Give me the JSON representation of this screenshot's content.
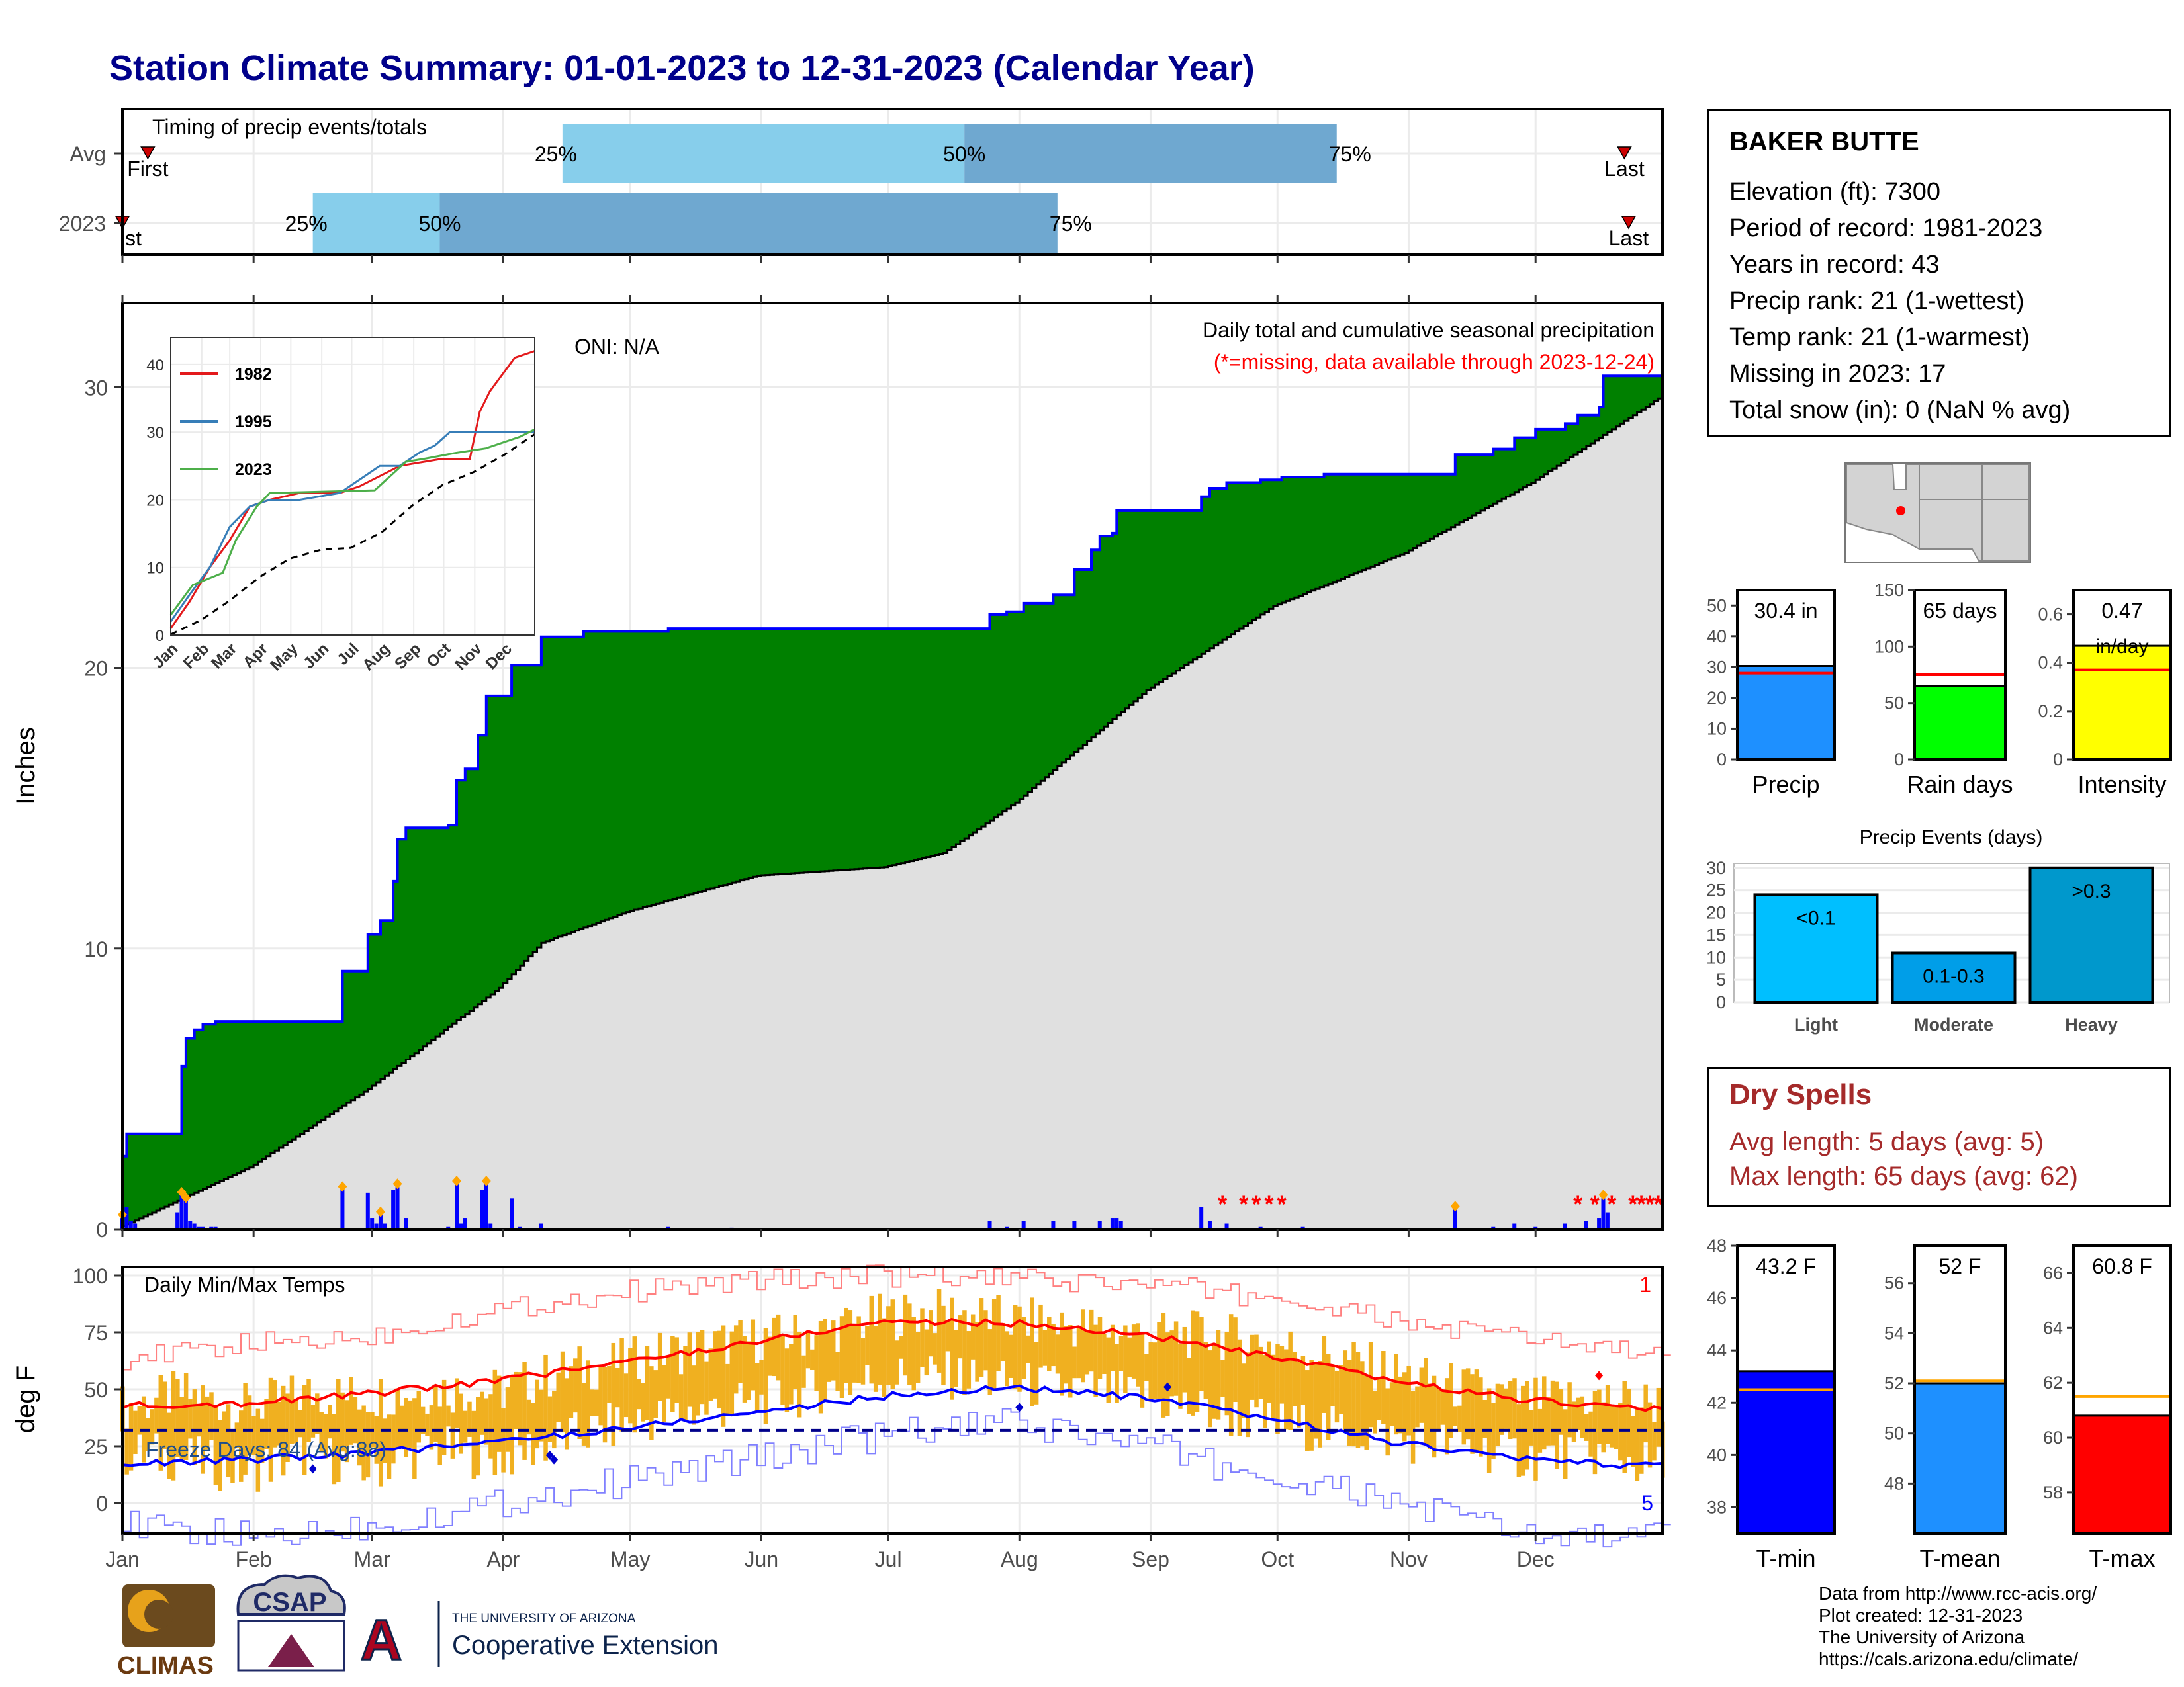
{
  "title": "Station Climate Summary: 01-01-2023 to 12-31-2023 (Calendar Year)",
  "months": [
    "Jan",
    "Feb",
    "Mar",
    "Apr",
    "May",
    "Jun",
    "Jul",
    "Aug",
    "Sep",
    "Oct",
    "Nov",
    "Dec"
  ],
  "timing": {
    "title": "Timing of precip events/totals",
    "rows": [
      {
        "label": "Avg",
        "first_doy": 7,
        "q25_doy": 105,
        "q50_doy": 200,
        "q75_doy": 288,
        "last_doy": 356
      },
      {
        "label": "2023",
        "first_doy": 1,
        "q25_doy": 46,
        "q50_doy": 76,
        "q75_doy": 222,
        "last_doy": 357
      }
    ],
    "first_label": "First",
    "first_label_2023": "st",
    "last_label": "Last",
    "pct25": "25%",
    "pct50": "50%",
    "pct75": "75%"
  },
  "precip": {
    "ylabel": "Inches",
    "yticks": [
      0,
      10,
      20,
      30
    ],
    "ylim": [
      0,
      33
    ],
    "oni": "ONI: N/A",
    "subtitle": "Daily total and cumulative seasonal precipitation",
    "missing_note": "(*=missing, data available through 2023-12-24)",
    "cum_2023": [
      [
        1,
        2.6
      ],
      [
        2,
        3.4
      ],
      [
        14,
        3.4
      ],
      [
        15,
        5.8
      ],
      [
        16,
        6.8
      ],
      [
        18,
        7.1
      ],
      [
        20,
        7.3
      ],
      [
        23,
        7.4
      ],
      [
        52,
        7.4
      ],
      [
        53,
        9.2
      ],
      [
        58,
        9.2
      ],
      [
        59,
        10.5
      ],
      [
        62,
        11.0
      ],
      [
        65,
        12.4
      ],
      [
        66,
        13.9
      ],
      [
        68,
        14.3
      ],
      [
        72,
        14.3
      ],
      [
        78,
        14.4
      ],
      [
        80,
        16.0
      ],
      [
        82,
        16.4
      ],
      [
        84,
        16.4
      ],
      [
        85,
        17.6
      ],
      [
        87,
        19.0
      ],
      [
        92,
        19.0
      ],
      [
        93,
        20.1
      ],
      [
        100,
        21.1
      ],
      [
        110,
        21.3
      ],
      [
        130,
        21.4
      ],
      [
        170,
        21.4
      ],
      [
        205,
        21.4
      ],
      [
        206,
        21.9
      ],
      [
        210,
        22.0
      ],
      [
        214,
        22.3
      ],
      [
        220,
        22.3
      ],
      [
        221,
        22.6
      ],
      [
        226,
        23.5
      ],
      [
        230,
        24.2
      ],
      [
        232,
        24.7
      ],
      [
        235,
        24.8
      ],
      [
        236,
        25.6
      ],
      [
        255,
        25.6
      ],
      [
        256,
        26.1
      ],
      [
        258,
        26.4
      ],
      [
        262,
        26.6
      ],
      [
        270,
        26.7
      ],
      [
        275,
        26.8
      ],
      [
        285,
        26.9
      ],
      [
        315,
        26.9
      ],
      [
        316,
        27.6
      ],
      [
        325,
        27.8
      ],
      [
        330,
        28.2
      ],
      [
        335,
        28.5
      ],
      [
        342,
        28.7
      ],
      [
        345,
        29.0
      ],
      [
        350,
        29.3
      ],
      [
        351,
        30.4
      ],
      [
        358,
        30.4
      ],
      [
        365,
        30.4
      ]
    ],
    "cum_avg": [
      [
        1,
        0.1
      ],
      [
        31,
        2.2
      ],
      [
        59,
        5.0
      ],
      [
        90,
        8.6
      ],
      [
        100,
        10.2
      ],
      [
        120,
        11.3
      ],
      [
        151,
        12.6
      ],
      [
        181,
        12.9
      ],
      [
        195,
        13.4
      ],
      [
        212,
        15.2
      ],
      [
        243,
        19.2
      ],
      [
        273,
        22.2
      ],
      [
        304,
        24.1
      ],
      [
        334,
        26.6
      ],
      [
        365,
        29.7
      ]
    ],
    "daily_2023": [
      [
        1,
        0.4
      ],
      [
        2,
        0.8
      ],
      [
        3,
        0.3
      ],
      [
        4,
        0.2
      ],
      [
        14,
        0.6
      ],
      [
        15,
        1.2
      ],
      [
        16,
        1.0
      ],
      [
        17,
        0.3
      ],
      [
        18,
        0.2
      ],
      [
        19,
        0.1
      ],
      [
        20,
        0.1
      ],
      [
        22,
        0.1
      ],
      [
        23,
        0.1
      ],
      [
        53,
        1.4
      ],
      [
        59,
        1.3
      ],
      [
        60,
        0.4
      ],
      [
        61,
        0.2
      ],
      [
        62,
        0.5
      ],
      [
        63,
        0.2
      ],
      [
        65,
        1.4
      ],
      [
        66,
        1.5
      ],
      [
        68,
        0.4
      ],
      [
        78,
        0.1
      ],
      [
        80,
        1.6
      ],
      [
        81,
        0.2
      ],
      [
        82,
        0.4
      ],
      [
        86,
        1.4
      ],
      [
        87,
        1.6
      ],
      [
        88,
        0.2
      ],
      [
        93,
        1.1
      ],
      [
        95,
        0.1
      ],
      [
        100,
        0.2
      ],
      [
        130,
        0.1
      ],
      [
        145,
        0.05
      ],
      [
        206,
        0.3
      ],
      [
        210,
        0.1
      ],
      [
        214,
        0.3
      ],
      [
        221,
        0.3
      ],
      [
        226,
        0.3
      ],
      [
        232,
        0.3
      ],
      [
        235,
        0.4
      ],
      [
        236,
        0.4
      ],
      [
        237,
        0.3
      ],
      [
        256,
        0.8
      ],
      [
        258,
        0.3
      ],
      [
        262,
        0.2
      ],
      [
        270,
        0.1
      ],
      [
        280,
        0.1
      ],
      [
        316,
        0.7
      ],
      [
        325,
        0.1
      ],
      [
        330,
        0.2
      ],
      [
        335,
        0.1
      ],
      [
        342,
        0.2
      ],
      [
        347,
        0.3
      ],
      [
        350,
        0.4
      ],
      [
        351,
        1.1
      ],
      [
        352,
        0.6
      ]
    ],
    "markers_doy": [
      1,
      15,
      16,
      53,
      62,
      66,
      80,
      87,
      316,
      351
    ],
    "missing_doy": [
      261,
      266,
      269,
      272,
      275,
      345,
      349,
      353,
      358,
      360,
      362,
      364
    ]
  },
  "inset": {
    "yticks": [
      0,
      10,
      20,
      30,
      40
    ],
    "series": [
      {
        "name": "1982",
        "color": "#e31a1c",
        "points": [
          [
            1,
            1
          ],
          [
            20,
            5
          ],
          [
            40,
            10
          ],
          [
            60,
            14
          ],
          [
            80,
            19
          ],
          [
            100,
            20
          ],
          [
            130,
            21
          ],
          [
            170,
            21
          ],
          [
            190,
            22
          ],
          [
            230,
            25
          ],
          [
            270,
            26
          ],
          [
            300,
            26
          ],
          [
            310,
            33
          ],
          [
            320,
            36
          ],
          [
            330,
            38
          ],
          [
            345,
            41
          ],
          [
            365,
            42
          ]
        ]
      },
      {
        "name": "1995",
        "color": "#377eb8",
        "points": [
          [
            1,
            2
          ],
          [
            20,
            6
          ],
          [
            40,
            10
          ],
          [
            60,
            16
          ],
          [
            80,
            19
          ],
          [
            100,
            20
          ],
          [
            130,
            20
          ],
          [
            170,
            21
          ],
          [
            190,
            23
          ],
          [
            210,
            25
          ],
          [
            230,
            25
          ],
          [
            250,
            27
          ],
          [
            265,
            28
          ],
          [
            280,
            30
          ],
          [
            310,
            30
          ],
          [
            345,
            30
          ],
          [
            365,
            30
          ]
        ]
      },
      {
        "name": "2023",
        "color": "#4daf4a",
        "points": [
          [
            1,
            3
          ],
          [
            23,
            7.4
          ],
          [
            53,
            9.2
          ],
          [
            66,
            14
          ],
          [
            87,
            19
          ],
          [
            100,
            21
          ],
          [
            205,
            21.4
          ],
          [
            236,
            25.6
          ],
          [
            256,
            26.1
          ],
          [
            285,
            26.9
          ],
          [
            316,
            27.6
          ],
          [
            350,
            29.3
          ],
          [
            365,
            30.4
          ]
        ]
      }
    ],
    "avg_points": [
      [
        1,
        0.1
      ],
      [
        31,
        2.2
      ],
      [
        59,
        5.0
      ],
      [
        90,
        8.6
      ],
      [
        120,
        11.3
      ],
      [
        151,
        12.6
      ],
      [
        181,
        12.9
      ],
      [
        212,
        15.2
      ],
      [
        243,
        19.2
      ],
      [
        273,
        22.2
      ],
      [
        304,
        24.1
      ],
      [
        334,
        26.6
      ],
      [
        365,
        29.7
      ]
    ]
  },
  "temps": {
    "ylabel": "deg F",
    "title": "Daily Min/Max Temps",
    "yticks": [
      0,
      25,
      50,
      75,
      100
    ],
    "freeze_label": "Freeze Days: 84 (Avg:88)",
    "freeze_line": 32,
    "record_hi_count": "1",
    "record_lo_count": "5",
    "avg_max": [
      [
        1,
        43
      ],
      [
        31,
        44
      ],
      [
        59,
        48
      ],
      [
        90,
        54
      ],
      [
        120,
        62
      ],
      [
        151,
        71
      ],
      [
        181,
        80
      ],
      [
        212,
        79
      ],
      [
        243,
        74
      ],
      [
        273,
        64
      ],
      [
        304,
        53
      ],
      [
        334,
        45
      ],
      [
        365,
        41
      ]
    ],
    "avg_min": [
      [
        1,
        17
      ],
      [
        31,
        19
      ],
      [
        59,
        22
      ],
      [
        90,
        27
      ],
      [
        120,
        33
      ],
      [
        151,
        40
      ],
      [
        181,
        47
      ],
      [
        212,
        51
      ],
      [
        243,
        46
      ],
      [
        273,
        37
      ],
      [
        304,
        26
      ],
      [
        334,
        19
      ],
      [
        365,
        16
      ]
    ],
    "hi_2023": [
      [
        1,
        42
      ],
      [
        15,
        48
      ],
      [
        30,
        42
      ],
      [
        45,
        48
      ],
      [
        59,
        47
      ],
      [
        75,
        50
      ],
      [
        90,
        49
      ],
      [
        105,
        58
      ],
      [
        120,
        62
      ],
      [
        135,
        68
      ],
      [
        151,
        72
      ],
      [
        166,
        75
      ],
      [
        181,
        82
      ],
      [
        196,
        84
      ],
      [
        212,
        80
      ],
      [
        227,
        78
      ],
      [
        243,
        74
      ],
      [
        258,
        74
      ],
      [
        273,
        70
      ],
      [
        288,
        64
      ],
      [
        304,
        56
      ],
      [
        319,
        50
      ],
      [
        334,
        45
      ],
      [
        349,
        46
      ],
      [
        365,
        44
      ]
    ],
    "lo_2023": [
      [
        1,
        22
      ],
      [
        15,
        20
      ],
      [
        30,
        14
      ],
      [
        45,
        22
      ],
      [
        59,
        15
      ],
      [
        75,
        24
      ],
      [
        90,
        20
      ],
      [
        105,
        28
      ],
      [
        120,
        35
      ],
      [
        135,
        40
      ],
      [
        151,
        44
      ],
      [
        166,
        50
      ],
      [
        181,
        55
      ],
      [
        196,
        56
      ],
      [
        212,
        52
      ],
      [
        227,
        50
      ],
      [
        243,
        46
      ],
      [
        258,
        40
      ],
      [
        273,
        35
      ],
      [
        288,
        32
      ],
      [
        304,
        28
      ],
      [
        319,
        25
      ],
      [
        334,
        20
      ],
      [
        349,
        22
      ],
      [
        365,
        15
      ]
    ],
    "rec_max": [
      [
        1,
        63
      ],
      [
        31,
        70
      ],
      [
        59,
        73
      ],
      [
        90,
        85
      ],
      [
        120,
        93
      ],
      [
        151,
        98
      ],
      [
        181,
        100
      ],
      [
        212,
        98
      ],
      [
        243,
        96
      ],
      [
        273,
        90
      ],
      [
        304,
        79
      ],
      [
        334,
        72
      ],
      [
        365,
        65
      ]
    ],
    "rec_min": [
      [
        1,
        -10
      ],
      [
        31,
        -15
      ],
      [
        59,
        -10
      ],
      [
        90,
        0
      ],
      [
        120,
        10
      ],
      [
        151,
        20
      ],
      [
        181,
        30
      ],
      [
        212,
        35
      ],
      [
        243,
        25
      ],
      [
        273,
        10
      ],
      [
        304,
        0
      ],
      [
        334,
        -15
      ],
      [
        365,
        -15
      ]
    ]
  },
  "station": {
    "name": "BAKER BUTTE",
    "lines": [
      "Elevation (ft): 7300",
      "Period of record: 1981-2023",
      "Years in record: 43",
      "Precip rank: 21 (1-wettest)",
      "Temp rank: 21 (1-warmest)",
      "Missing in 2023: 17",
      "Total snow (in): 0 (NaN % avg)"
    ]
  },
  "gauges": [
    {
      "label": "Precip",
      "value_label": "30.4 in",
      "value": 30.4,
      "avg": 28,
      "ylim": [
        0,
        55
      ],
      "yticks": [
        0,
        10,
        20,
        30,
        40,
        50
      ],
      "color": "#1e90ff"
    },
    {
      "label": "Rain days",
      "value_label": "65 days",
      "value": 65,
      "avg": 75,
      "ylim": [
        0,
        150
      ],
      "yticks": [
        0,
        50,
        100,
        150
      ],
      "color": "#00ff00"
    },
    {
      "label": "Intensity",
      "value_label": "0.47",
      "value_label2": "in/day",
      "value": 0.47,
      "avg": 0.37,
      "ylim": [
        0,
        0.7
      ],
      "yticks": [
        0.0,
        0.2,
        0.4,
        0.6
      ],
      "color": "#ffff00"
    }
  ],
  "events": {
    "title": "Precip Events (days)",
    "yticks": [
      0,
      5,
      10,
      15,
      20,
      25,
      30
    ],
    "ylim": [
      0,
      31
    ],
    "bars": [
      {
        "category": "Light",
        "label": "<0.1",
        "value": 24,
        "color": "#00bfff"
      },
      {
        "category": "Moderate",
        "label": "0.1-0.3",
        "value": 11,
        "color": "#009ee8"
      },
      {
        "category": "Heavy",
        "label": ">0.3",
        "value": 30,
        "color": "#0098cc"
      }
    ]
  },
  "dry_spells": {
    "title": "Dry Spells",
    "lines": [
      "Avg length: 5 days (avg: 5)",
      "Max length: 65 days (avg: 62)"
    ]
  },
  "temp_gauges": [
    {
      "label": "T-min",
      "value_label": "43.2 F",
      "value": 43.2,
      "avg": 42.5,
      "ylim": [
        37,
        48
      ],
      "yticks": [
        38,
        40,
        42,
        44,
        46,
        48
      ],
      "color": "#0000ff"
    },
    {
      "label": "T-mean",
      "value_label": "52 F",
      "value": 52.0,
      "avg": 52.1,
      "ylim": [
        46,
        57.5
      ],
      "yticks": [
        48,
        50,
        52,
        54,
        56
      ],
      "color": "#1e90ff"
    },
    {
      "label": "T-max",
      "value_label": "60.8 F",
      "value": 60.8,
      "avg": 61.5,
      "ylim": [
        56.5,
        67
      ],
      "yticks": [
        58,
        60,
        62,
        64,
        66
      ],
      "color": "#ff0000"
    }
  ],
  "credits": [
    "Data from http://www.rcc-acis.org/",
    "Plot created: 12-31-2023",
    "The University of Arizona",
    "https://cals.arizona.edu/climate/"
  ],
  "logos": {
    "climas": "CLIMAS",
    "csap": "CSAP",
    "ua_small": "THE UNIVERSITY OF ARIZONA",
    "ua_big": "Cooperative Extension"
  },
  "colors": {
    "cum2023": "#008000",
    "cumavg": "#e0e0e0",
    "daily": "#0000ff",
    "title": "#00008b",
    "temp_bar": "#f0b020",
    "q_light": "#87ceeb",
    "q_dark": "#6fa8d0"
  }
}
